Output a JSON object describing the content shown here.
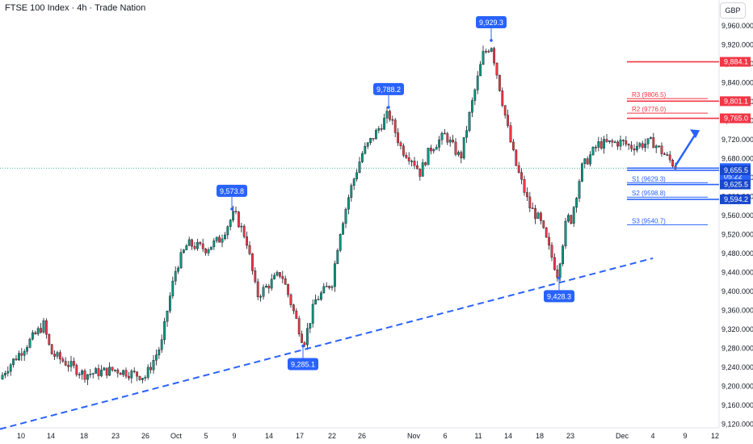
{
  "header": {
    "title": "FTSE 100 Index · 4h · Trade Nation",
    "currency": "GBP"
  },
  "colors": {
    "up": "#089981",
    "down": "#f23645",
    "wick": "#131722",
    "trendline": "#2962ff",
    "annotation": "#2962ff",
    "resistance": "#f23645",
    "support": "#2962ff"
  },
  "chart_data": {
    "type": "candlestick",
    "title": "FTSE 100 Index · 4h · Trade Nation",
    "currency": "GBP",
    "ylim": [
      9110,
      9990
    ],
    "y_ticks": [
      9120,
      9160,
      9200,
      9240,
      9280,
      9320,
      9360,
      9400,
      9440,
      9480,
      9520,
      9560,
      9600,
      9640,
      9680,
      9720,
      9760,
      9800,
      9840,
      9880,
      9920,
      9960
    ],
    "x_ticks": [
      "10",
      "14",
      "18",
      "23",
      "26",
      "Oct",
      "5",
      "9",
      "14",
      "17",
      "22",
      "26",
      "Nov",
      "6",
      "11",
      "14",
      "18",
      "23",
      "Dec",
      "4",
      "9",
      "12"
    ],
    "anchors": [
      {
        "label": "10",
        "y": 9215
      },
      {
        "label": "",
        "y": 9235
      },
      {
        "label": "",
        "y": 9330
      },
      {
        "label": "14",
        "y": 9270
      },
      {
        "label": "18",
        "y": 9225
      },
      {
        "label": "23",
        "y": 9235
      },
      {
        "label": "26",
        "y": 9220
      },
      {
        "label": "",
        "y": 9290
      },
      {
        "label": "",
        "y": 9370
      },
      {
        "label": "Oct",
        "y": 9450
      },
      {
        "label": "",
        "y": 9500
      },
      {
        "label": "5",
        "y": 9490
      },
      {
        "label": "",
        "y": 9510
      },
      {
        "label": "9",
        "y": 9565
      },
      {
        "label": "",
        "y": 9510
      },
      {
        "label": "14",
        "y": 9390
      },
      {
        "label": "",
        "y": 9440
      },
      {
        "label": "17",
        "y": 9290
      },
      {
        "label": "",
        "y": 9380
      },
      {
        "label": "22",
        "y": 9420
      },
      {
        "label": "",
        "y": 9520
      },
      {
        "label": "",
        "y": 9610
      },
      {
        "label": "26",
        "y": 9690
      },
      {
        "label": "",
        "y": 9775
      },
      {
        "label": "",
        "y": 9700
      },
      {
        "label": "",
        "y": 9680
      },
      {
        "label": "Nov",
        "y": 9650
      },
      {
        "label": "",
        "y": 9700
      },
      {
        "label": "6",
        "y": 9730
      },
      {
        "label": "",
        "y": 9680
      },
      {
        "label": "",
        "y": 9780
      },
      {
        "label": "11",
        "y": 9900
      },
      {
        "label": "",
        "y": 9920
      },
      {
        "label": "",
        "y": 9730
      },
      {
        "label": "14",
        "y": 9670
      },
      {
        "label": "",
        "y": 9580
      },
      {
        "label": "18",
        "y": 9550
      },
      {
        "label": "",
        "y": 9436
      },
      {
        "label": "",
        "y": 9560
      },
      {
        "label": "23",
        "y": 9545
      },
      {
        "label": "",
        "y": 9660
      },
      {
        "label": "",
        "y": 9710
      },
      {
        "label": "Dec",
        "y": 9715
      },
      {
        "label": "",
        "y": 9705
      },
      {
        "label": "4",
        "y": 9715
      },
      {
        "label": "",
        "y": 9660
      }
    ],
    "trendline": {
      "from": {
        "x_label": "10",
        "y": 9120
      },
      "to": {
        "x_label": "9",
        "y": 9470
      }
    },
    "arrow": {
      "from": {
        "x_label": "9",
        "y": 9665
      },
      "to": {
        "x_label": "9",
        "y": 9740
      }
    },
    "swing_labels": [
      {
        "text": "9,573.8",
        "y": 9573.8,
        "at": "9",
        "position": "above"
      },
      {
        "text": "9,285.1",
        "y": 9285.1,
        "at": "17",
        "position": "below"
      },
      {
        "text": "9,788.2",
        "y": 9788.2,
        "at": "26",
        "position": "above"
      },
      {
        "text": "9,929.3",
        "y": 9929.3,
        "at": "11",
        "position": "above"
      },
      {
        "text": "9,428.3",
        "y": 9428.3,
        "at": "18",
        "position": "below"
      }
    ],
    "pivot_levels": [
      {
        "text": "R3 (9806.5)",
        "y": 9806.5
      },
      {
        "text": "R2 (9776.0)",
        "y": 9776.0
      },
      {
        "text": "S1 (9629.3)",
        "y": 9629.3
      },
      {
        "text": "S2 (9598.8)",
        "y": 9598.8
      },
      {
        "text": "S3 (9540.7)",
        "y": 9540.7
      }
    ],
    "price_tags": [
      {
        "text": "9,884.1",
        "y": 9884.1,
        "kind": "resistance"
      },
      {
        "text": "9,801.1",
        "y": 9801.1,
        "kind": "resistance"
      },
      {
        "text": "9,765.0",
        "y": 9765.0,
        "kind": "resistance"
      },
      {
        "text": "9,660.0",
        "sub": "05:22",
        "y": 9660.0,
        "kind": "current"
      },
      {
        "text": "9,655.5",
        "y": 9655.5,
        "kind": "support"
      },
      {
        "text": "9,625.5",
        "y": 9625.5,
        "kind": "support"
      },
      {
        "text": "9,594.2",
        "y": 9594.2,
        "kind": "support"
      }
    ],
    "current_price": 9660.0
  }
}
